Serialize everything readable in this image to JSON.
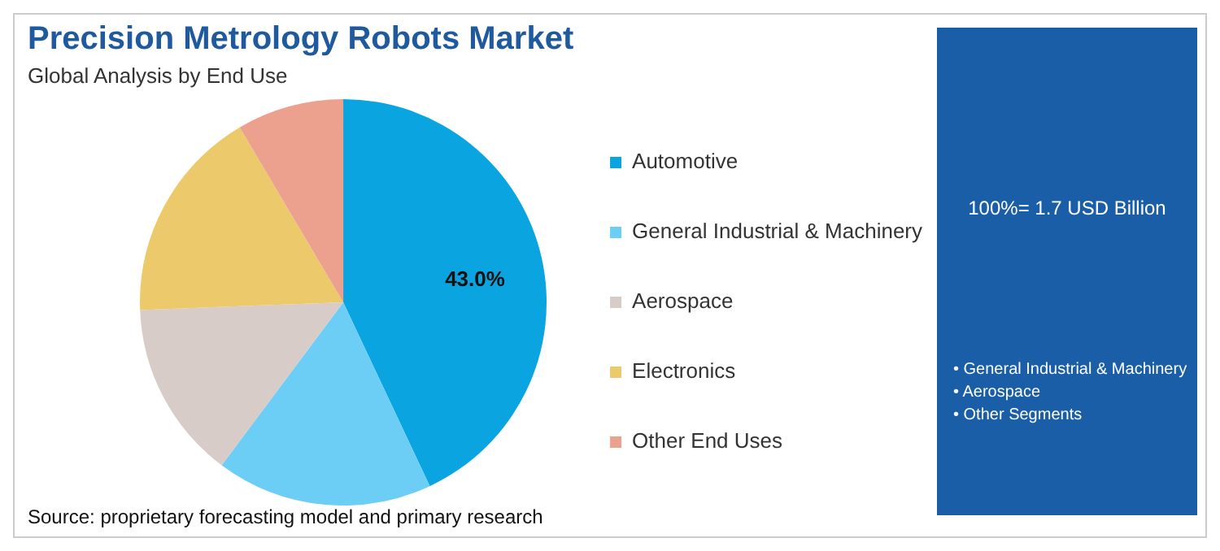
{
  "chart_data": {
    "type": "pie",
    "title": "Precision Metrology Robots Market",
    "subtitle": "Global Analysis by End Use",
    "categories": [
      "Automotive",
      "General Industrial & Machinery",
      "Aerospace",
      "Electronics",
      "Other End Uses"
    ],
    "values": [
      43.0,
      17.2,
      14.2,
      17.1,
      8.5
    ],
    "colors": [
      "#0aa5e0",
      "#6dcef5",
      "#d8ccc8",
      "#ecc96a",
      "#eca08e"
    ],
    "value_labels": [
      "43.0%",
      null,
      null,
      null,
      null
    ],
    "legend": "right",
    "annotations": [
      "Source: proprietary forecasting model and primary research",
      "100%= 1.7 USD Billion",
      "• General Industrial & Machinery",
      "• Aerospace",
      "• Other Segments"
    ]
  }
}
